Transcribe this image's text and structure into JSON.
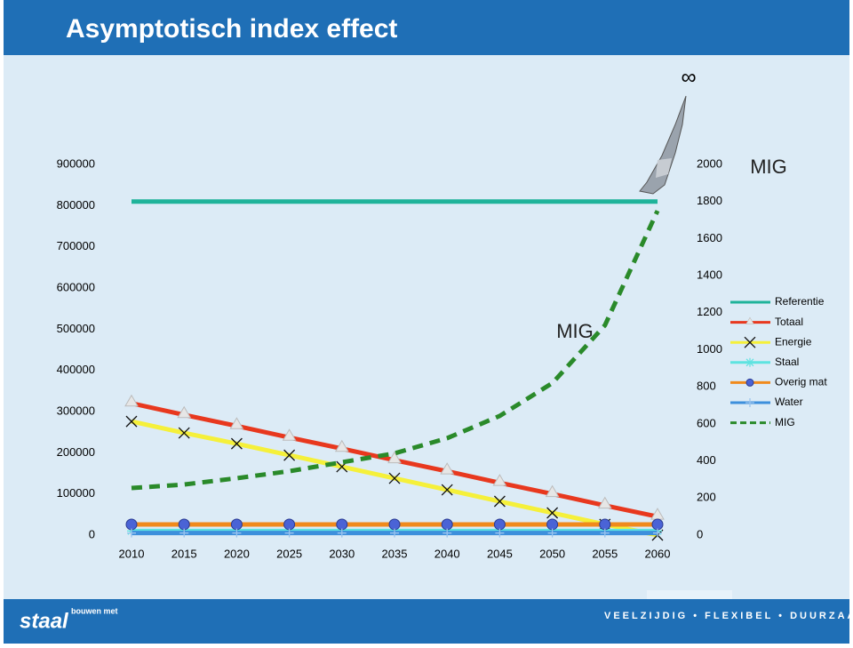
{
  "chart_data": {
    "type": "line",
    "title": "Asymptotisch index effect",
    "categories": [
      "2010",
      "2015",
      "2020",
      "2025",
      "2030",
      "2035",
      "2040",
      "2045",
      "2050",
      "2055",
      "2060"
    ],
    "series": [
      {
        "name": "Referentie",
        "color": "#1fb39a",
        "marker": "none",
        "values": [
          810000,
          810000,
          810000,
          810000,
          810000,
          810000,
          810000,
          810000,
          810000,
          810000,
          810000
        ]
      },
      {
        "name": "Totaal",
        "color": "#e8381e",
        "marker": "triangle",
        "values": [
          320000,
          292000,
          265000,
          237000,
          210000,
          182000,
          155000,
          127000,
          100000,
          72000,
          45000
        ]
      },
      {
        "name": "Energie",
        "color": "#f5f03a",
        "marker": "x",
        "values": [
          276000,
          248000,
          222000,
          194000,
          166000,
          138000,
          110000,
          82000,
          54000,
          26000,
          0
        ]
      },
      {
        "name": "Staal",
        "color": "#5ee3e0",
        "marker": "star",
        "values": [
          10000,
          10000,
          10000,
          10000,
          10000,
          10000,
          10000,
          10000,
          10000,
          10000,
          10000
        ]
      },
      {
        "name": "Overig mat",
        "color": "#f08a1c",
        "marker": "circle",
        "values": [
          26000,
          26000,
          26000,
          26000,
          26000,
          26000,
          26000,
          26000,
          26000,
          26000,
          26000
        ]
      },
      {
        "name": "Water",
        "color": "#3d8fdc",
        "marker": "plus",
        "values": [
          5000,
          5000,
          5000,
          5000,
          5000,
          5000,
          5000,
          5000,
          5000,
          5000,
          5000
        ]
      },
      {
        "name": "MIG",
        "color": "#2a8a2a",
        "marker": "none",
        "dashed": true,
        "axis": "y2",
        "values": [
          254,
          273,
          307,
          345,
          393,
          441,
          523,
          643,
          820,
          1132,
          1750
        ]
      }
    ],
    "ylim": [
      0,
      900000
    ],
    "yticks": [
      0,
      100000,
      200000,
      300000,
      400000,
      500000,
      600000,
      700000,
      800000,
      900000
    ],
    "y2lim": [
      0,
      2000
    ],
    "y2ticks": [
      0,
      200,
      400,
      600,
      800,
      1000,
      1200,
      1400,
      1600,
      1800,
      2000
    ],
    "legend": "right",
    "annotations": [
      "MIG",
      "MIG",
      "∞"
    ]
  },
  "footer": {
    "logo_top": "bouwen met",
    "logo": "staal",
    "slogan": "VEELZIJDIG • FLEXIBEL • DUURZAAM"
  }
}
